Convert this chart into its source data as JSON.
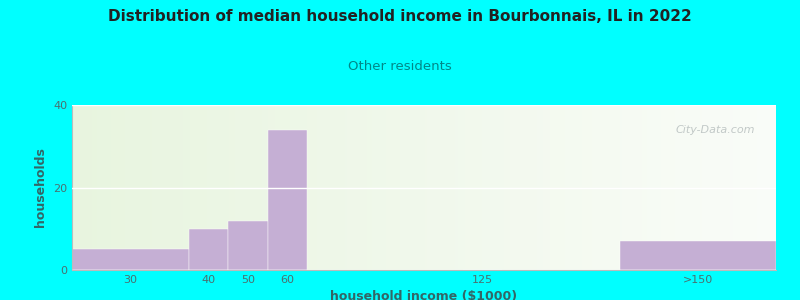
{
  "title": "Distribution of median household income in Bourbonnais, IL in 2022",
  "subtitle": "Other residents",
  "xlabel": "household income ($1000)",
  "ylabel": "households",
  "background_color": "#00FFFF",
  "bar_color": "#c5afd4",
  "title_color": "#222222",
  "subtitle_color": "#008888",
  "axis_label_color": "#336666",
  "tick_color": "#4a7070",
  "watermark": "City-Data.com",
  "bar_lefts": [
    0,
    3,
    4,
    5,
    10,
    14
  ],
  "bar_rights": [
    3,
    4,
    5,
    6,
    11,
    18
  ],
  "values": [
    5,
    10,
    12,
    34,
    0,
    7
  ],
  "xtick_labels": [
    "30",
    "40",
    "50",
    "60",
    "125",
    ">150"
  ],
  "xtick_pos": [
    1.5,
    3.5,
    4.5,
    5.5,
    10.5,
    16
  ],
  "ylim": [
    0,
    40
  ],
  "xlim": [
    0,
    18
  ],
  "yticks": [
    0,
    20,
    40
  ]
}
